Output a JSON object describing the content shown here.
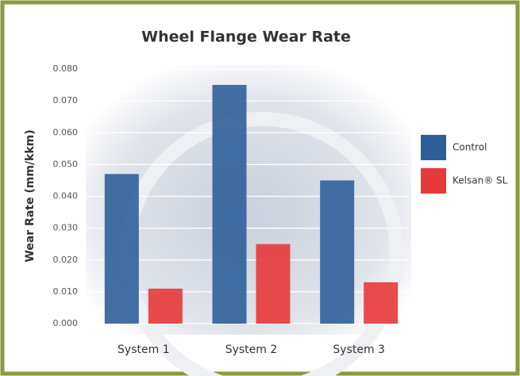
{
  "chart_data": {
    "type": "bar",
    "title": "Wheel Flange Wear Rate",
    "y_label": "Wear Rate (mm/kkm)",
    "categories": [
      "System 1",
      "System 2",
      "System 3"
    ],
    "series": [
      {
        "name": "Control",
        "color": "#2f5f9a",
        "values": [
          0.047,
          0.075,
          0.045
        ]
      },
      {
        "name": "Kelsan® SL",
        "color": "#e8393a",
        "values": [
          0.011,
          0.025,
          0.013
        ]
      }
    ],
    "ylim": [
      0,
      0.08
    ],
    "yticks": [
      {
        "value": 0,
        "label": "0.000"
      },
      {
        "value": 0.01,
        "label": "0.010"
      },
      {
        "value": 0.02,
        "label": "0.020"
      },
      {
        "value": 0.03,
        "label": "0.030"
      },
      {
        "value": 0.04,
        "label": "0.040"
      },
      {
        "value": 0.05,
        "label": "0.050"
      },
      {
        "value": 0.06,
        "label": "0.060"
      },
      {
        "value": 0.07,
        "label": "0.070"
      },
      {
        "value": 0.08,
        "label": "0.080"
      }
    ],
    "grid": true,
    "legend": "right"
  }
}
